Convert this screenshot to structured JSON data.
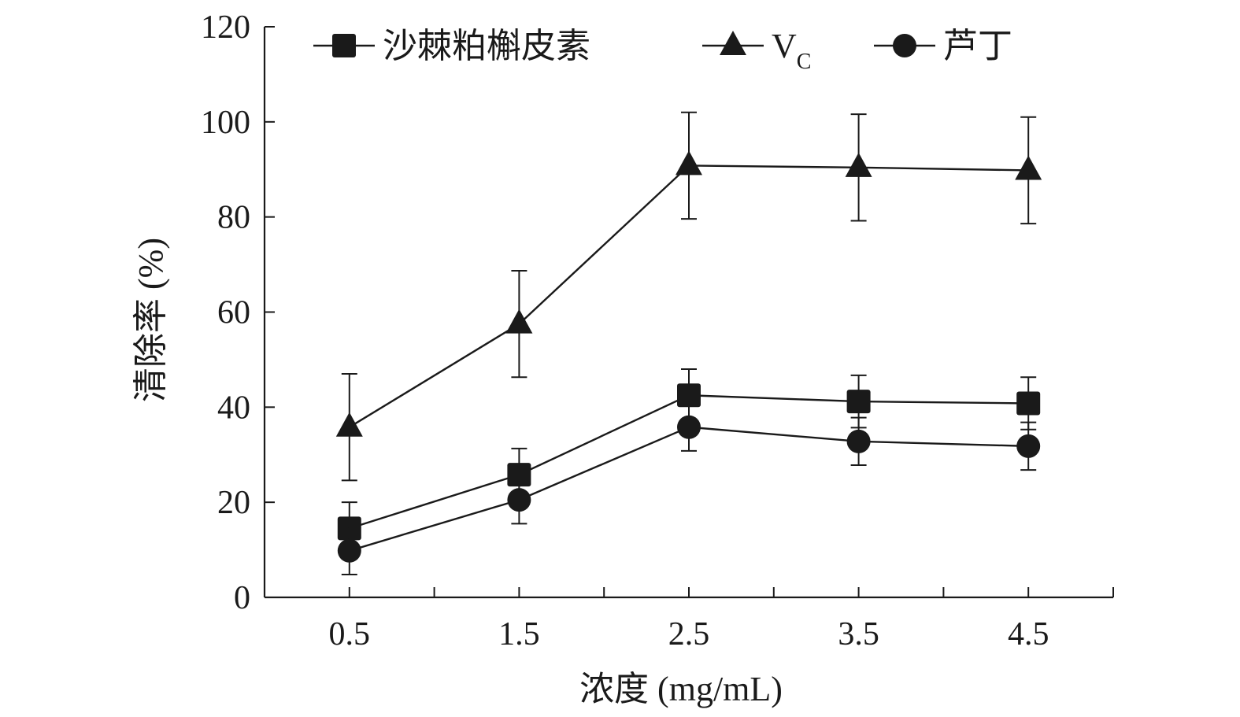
{
  "chart_data": {
    "type": "line",
    "xlabel": "浓度 (mg/mL)",
    "ylabel": "清除率 (%)",
    "x": [
      0.5,
      1.5,
      2.5,
      3.5,
      4.5
    ],
    "xlim": [
      0,
      5
    ],
    "x_tick_labels": [
      "0.5",
      "1.5",
      "2.5",
      "3.5",
      "4.5"
    ],
    "ylim": [
      0,
      120
    ],
    "y_ticks": [
      0,
      20,
      40,
      60,
      80,
      100,
      120
    ],
    "grid": false,
    "legend_position": "top",
    "series": [
      {
        "name": "沙棘粕槲皮素",
        "marker": "square",
        "values": [
          14.5,
          25.8,
          42.5,
          41.2,
          40.8
        ],
        "errors": [
          5.5,
          5.5,
          5.5,
          5.5,
          5.5
        ]
      },
      {
        "name": "V",
        "name_subscript": "C",
        "marker": "triangle",
        "values": [
          35.8,
          57.5,
          90.8,
          90.4,
          89.8
        ],
        "errors": [
          11.2,
          11.2,
          11.2,
          11.2,
          11.2
        ]
      },
      {
        "name": "芦丁",
        "marker": "circle",
        "values": [
          9.8,
          20.5,
          35.8,
          32.8,
          31.8
        ],
        "errors": [
          5.0,
          5.0,
          5.0,
          5.0,
          5.0
        ]
      }
    ],
    "colors": {
      "line": "#1a1a1a",
      "marker": "#1a1a1a",
      "axis": "#1a1a1a"
    }
  }
}
